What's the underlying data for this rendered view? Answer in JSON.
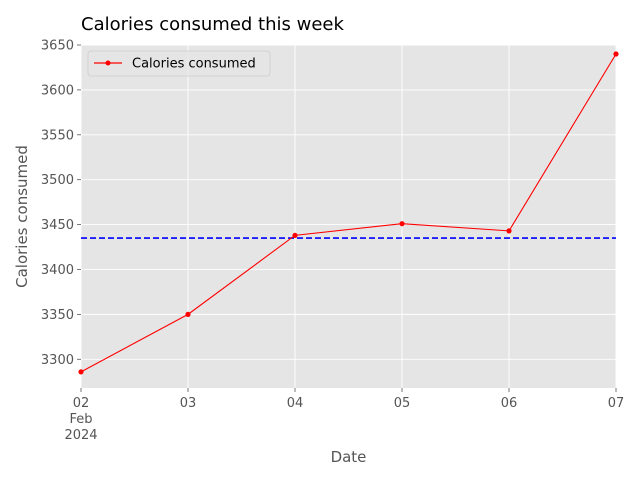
{
  "chart_data": {
    "type": "line",
    "title": "Calories consumed this week",
    "xlabel": "Date",
    "ylabel": "Calories consumed",
    "x": [
      "2024-02-02",
      "2024-02-03",
      "2024-02-04",
      "2024-02-05",
      "2024-02-06",
      "2024-02-07"
    ],
    "x_tick_labels": [
      "02",
      "03",
      "04",
      "05",
      "06",
      "07"
    ],
    "x_tick_sublabels": [
      "Feb",
      "2024"
    ],
    "series": [
      {
        "name": "Calories consumed",
        "values": [
          3286,
          3350,
          3438,
          3451,
          3443,
          3640
        ],
        "color": "#ff0000",
        "marker": "circle"
      }
    ],
    "reference_line": {
      "value": 3435,
      "color": "#0000ff",
      "style": "dashed"
    },
    "ylim": [
      3268,
      3650
    ],
    "y_ticks": [
      3300,
      3350,
      3400,
      3450,
      3500,
      3550,
      3600,
      3650
    ],
    "grid": true,
    "legend": "top-left",
    "background": "#e5e5e5"
  }
}
